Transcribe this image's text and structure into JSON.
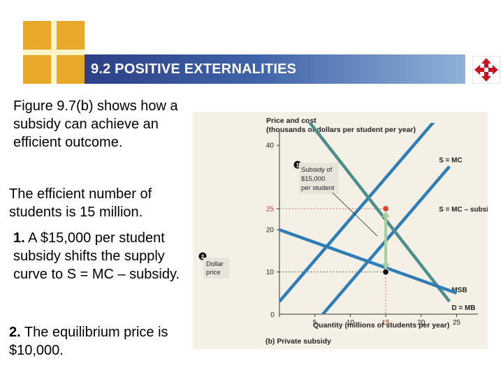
{
  "slide": {
    "title": "9.2 POSITIVE EXTERNALITIES",
    "para1": "Figure 9.7(b) shows how a subsidy can achieve an efficient outcome.",
    "para2": "The efficient number of students is 15 million.",
    "step1_num": "1.",
    "step1_text": "A $15,000 per student subsidy shifts the supply curve to S = MC – subsidy.",
    "step2_num": "2.",
    "step2_text": "The equilibrium price is $10,000.",
    "logo_icon": "window-grid-logo-icon",
    "nav_icon": "four-arrows-nav-icon",
    "accent": "#3f63a8"
  },
  "chart_data": {
    "type": "line",
    "ylabel_line1": "Price and cost",
    "ylabel_line2": "(thousands of dollars per student per year)",
    "xlabel": "Quantity (millions of students per year)",
    "caption": "(b) Private subsidy",
    "xlim": [
      0,
      28
    ],
    "ylim": [
      0,
      44
    ],
    "x_ticks": [
      "0",
      "5",
      "10",
      "15",
      "20",
      "25"
    ],
    "x_tick_values": [
      0,
      5,
      10,
      15,
      20,
      25
    ],
    "y_ticks": [
      "10",
      "20",
      "25",
      "40"
    ],
    "y_tick_values": [
      10,
      20,
      25,
      40
    ],
    "series": [
      {
        "name": "S = MC",
        "color": "#2f7db6",
        "x": [
          0,
          22
        ],
        "y": [
          3,
          46
        ]
      },
      {
        "name": "S = MC – subsidy",
        "color": "#2f7db6",
        "x": [
          0,
          24
        ],
        "y": [
          -12,
          35
        ]
      },
      {
        "name": "MSB",
        "color": "#4c8f8a",
        "x": [
          4,
          24
        ],
        "y": [
          46,
          3
        ]
      },
      {
        "name": "D = MB",
        "color": "#2f7db6",
        "x": [
          0,
          25
        ],
        "y": [
          20,
          5
        ]
      }
    ],
    "points": [
      {
        "x": 15,
        "y": 25,
        "color": "#e0453a"
      },
      {
        "x": 15,
        "y": 10,
        "color": "#111111"
      }
    ],
    "subsidy_arrow": {
      "x": 15,
      "y_from": 10,
      "y_to": 25
    },
    "annotations": [
      {
        "marker": "1",
        "lines": [
          "Subsidy of",
          "$15,000",
          "per student"
        ]
      },
      {
        "marker": "2",
        "lines": [
          "Dollar",
          "price"
        ]
      }
    ]
  }
}
